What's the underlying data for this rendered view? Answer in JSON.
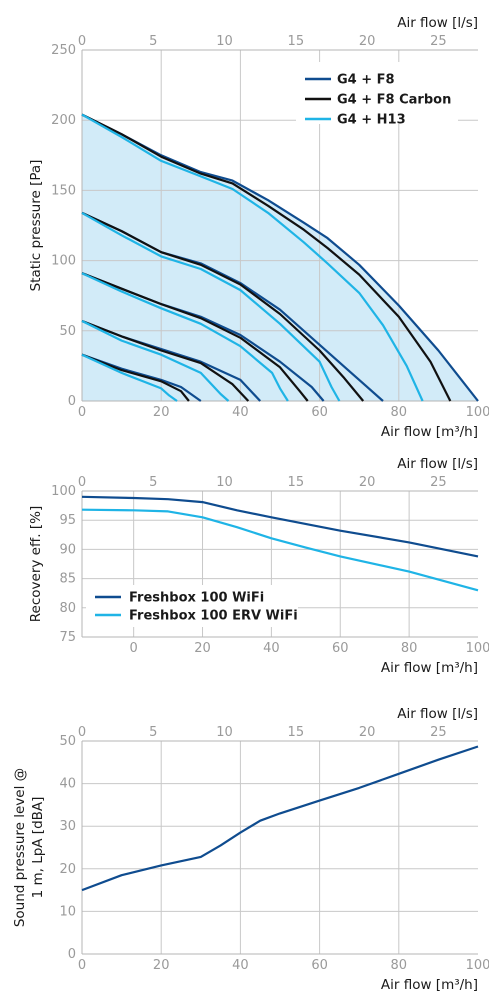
{
  "colors": {
    "dark_blue": "#0f4c8f",
    "black": "#111111",
    "light_blue": "#1fb4e6",
    "fill": "#d2ebf8",
    "grid": "#c8c8c8",
    "tick": "#9a9a9a"
  },
  "chart_data": [
    {
      "id": "static-pressure",
      "type": "line",
      "xlabel": "Air flow [m³/h]",
      "x2label": "Air flow [l/s]",
      "ylabel": "Static pressure [Pa]",
      "xlim": [
        0,
        100
      ],
      "x2lim": [
        0,
        27.78
      ],
      "ylim": [
        0,
        250
      ],
      "xticks": [
        "0",
        "20",
        "40",
        "60",
        "80",
        "100"
      ],
      "x2ticks": [
        "0",
        "5",
        "10",
        "15",
        "20",
        "25"
      ],
      "yticks": [
        "0",
        "50",
        "100",
        "150",
        "200",
        "250"
      ],
      "legend_position": "top-right",
      "shaded_region": true,
      "series": [
        {
          "name": "G4 + F8",
          "color": "dark_blue",
          "curves": [
            [
              [
                0,
                204
              ],
              [
                10,
                190
              ],
              [
                20,
                175
              ],
              [
                30,
                163
              ],
              [
                38,
                157
              ],
              [
                47,
                143
              ],
              [
                56,
                127
              ],
              [
                62,
                116
              ],
              [
                70,
                97
              ],
              [
                80,
                68
              ],
              [
                90,
                36
              ],
              [
                100,
                0
              ]
            ],
            [
              [
                0,
                134
              ],
              [
                10,
                121
              ],
              [
                20,
                106
              ],
              [
                30,
                98
              ],
              [
                40,
                84
              ],
              [
                50,
                65
              ],
              [
                60,
                40
              ],
              [
                68,
                20
              ],
              [
                76,
                0
              ]
            ],
            [
              [
                0,
                91
              ],
              [
                10,
                80
              ],
              [
                20,
                69
              ],
              [
                30,
                60
              ],
              [
                40,
                47
              ],
              [
                50,
                28
              ],
              [
                58,
                10
              ],
              [
                61,
                0
              ]
            ],
            [
              [
                0,
                57
              ],
              [
                10,
                46
              ],
              [
                20,
                37
              ],
              [
                30,
                28
              ],
              [
                40,
                15
              ],
              [
                45,
                0
              ]
            ],
            [
              [
                0,
                33
              ],
              [
                10,
                23
              ],
              [
                20,
                15
              ],
              [
                25,
                10
              ],
              [
                30,
                0
              ]
            ]
          ]
        },
        {
          "name": "G4 + F8 Carbon",
          "color": "black",
          "curves": [
            [
              [
                0,
                204
              ],
              [
                10,
                190
              ],
              [
                20,
                174
              ],
              [
                30,
                162
              ],
              [
                38,
                155
              ],
              [
                47,
                139
              ],
              [
                56,
                122
              ],
              [
                62,
                109
              ],
              [
                70,
                90
              ],
              [
                80,
                60
              ],
              [
                88,
                28
              ],
              [
                93,
                0
              ]
            ],
            [
              [
                0,
                134
              ],
              [
                10,
                121
              ],
              [
                20,
                106
              ],
              [
                30,
                97
              ],
              [
                40,
                83
              ],
              [
                50,
                62
              ],
              [
                60,
                36
              ],
              [
                66,
                17
              ],
              [
                71,
                0
              ]
            ],
            [
              [
                0,
                91
              ],
              [
                10,
                80
              ],
              [
                20,
                69
              ],
              [
                30,
                59
              ],
              [
                40,
                45
              ],
              [
                50,
                24
              ],
              [
                55,
                7
              ],
              [
                57,
                0
              ]
            ],
            [
              [
                0,
                57
              ],
              [
                10,
                46
              ],
              [
                20,
                36
              ],
              [
                30,
                27
              ],
              [
                38,
                12
              ],
              [
                42,
                0
              ]
            ],
            [
              [
                0,
                33
              ],
              [
                10,
                22
              ],
              [
                20,
                14
              ],
              [
                25,
                7
              ],
              [
                27,
                0
              ]
            ]
          ]
        },
        {
          "name": "G4 + H13",
          "color": "light_blue",
          "curves": [
            [
              [
                0,
                204
              ],
              [
                10,
                188
              ],
              [
                20,
                171
              ],
              [
                30,
                160
              ],
              [
                38,
                151
              ],
              [
                47,
                134
              ],
              [
                56,
                113
              ],
              [
                62,
                98
              ],
              [
                70,
                77
              ],
              [
                76,
                54
              ],
              [
                82,
                25
              ],
              [
                86,
                0
              ]
            ],
            [
              [
                0,
                134
              ],
              [
                10,
                118
              ],
              [
                20,
                103
              ],
              [
                30,
                94
              ],
              [
                40,
                79
              ],
              [
                50,
                55
              ],
              [
                60,
                28
              ],
              [
                63,
                10
              ],
              [
                65,
                0
              ]
            ],
            [
              [
                0,
                91
              ],
              [
                10,
                78
              ],
              [
                20,
                66
              ],
              [
                30,
                55
              ],
              [
                40,
                39
              ],
              [
                48,
                20
              ],
              [
                50,
                9
              ],
              [
                52,
                0
              ]
            ],
            [
              [
                0,
                57
              ],
              [
                10,
                43
              ],
              [
                20,
                33
              ],
              [
                30,
                20
              ],
              [
                35,
                5
              ],
              [
                37,
                0
              ]
            ],
            [
              [
                0,
                33
              ],
              [
                10,
                20
              ],
              [
                20,
                9
              ],
              [
                22,
                4
              ],
              [
                24,
                0
              ]
            ]
          ]
        }
      ]
    },
    {
      "id": "recovery",
      "type": "line",
      "xlabel": "Air flow [m³/h]",
      "x2label": "Air flow [l/s]",
      "ylabel": "Recovery eff. [%]",
      "xlim": [
        -15,
        100
      ],
      "x2lim": [
        0,
        27.78
      ],
      "ylim": [
        75,
        100
      ],
      "xticks": [
        "0",
        "20",
        "40",
        "60",
        "80",
        "100"
      ],
      "x2ticks": [
        "0",
        "5",
        "10",
        "15",
        "20",
        "25"
      ],
      "yticks": [
        "75",
        "80",
        "85",
        "90",
        "95",
        "100"
      ],
      "legend_position": "bottom-left",
      "series": [
        {
          "name": "Freshbox 100 WiFi",
          "color": "dark_blue",
          "points": [
            [
              -15,
              99
            ],
            [
              0,
              98.8
            ],
            [
              10,
              98.6
            ],
            [
              20,
              98.1
            ],
            [
              30,
              96.7
            ],
            [
              40,
              95.5
            ],
            [
              60,
              93.2
            ],
            [
              80,
              91.2
            ],
            [
              100,
              88.8
            ]
          ]
        },
        {
          "name": "Freshbox 100 ERV WiFi",
          "color": "light_blue",
          "points": [
            [
              -15,
              96.8
            ],
            [
              0,
              96.7
            ],
            [
              10,
              96.5
            ],
            [
              20,
              95.5
            ],
            [
              30,
              93.8
            ],
            [
              40,
              91.9
            ],
            [
              50,
              90.3
            ],
            [
              60,
              88.8
            ],
            [
              80,
              86.2
            ],
            [
              100,
              83
            ]
          ]
        }
      ]
    },
    {
      "id": "sound",
      "type": "line",
      "xlabel": "Air flow [m³/h]",
      "x2label": "Air flow [l/s]",
      "ylabel_lines": [
        "Sound pressure level @",
        "1 m, LpA [dBA]"
      ],
      "xlim": [
        0,
        100
      ],
      "x2lim": [
        0,
        27.78
      ],
      "ylim": [
        0,
        50
      ],
      "xticks": [
        "0",
        "20",
        "40",
        "60",
        "80",
        "100"
      ],
      "x2ticks": [
        "0",
        "5",
        "10",
        "15",
        "20",
        "25"
      ],
      "yticks": [
        "0",
        "10",
        "20",
        "30",
        "40",
        "50"
      ],
      "series": [
        {
          "color": "dark_blue",
          "points": [
            [
              0,
              15
            ],
            [
              10,
              18.5
            ],
            [
              20,
              20.8
            ],
            [
              30,
              22.8
            ],
            [
              35,
              25.5
            ],
            [
              40,
              28.5
            ],
            [
              45,
              31.3
            ],
            [
              50,
              33
            ],
            [
              60,
              36
            ],
            [
              70,
              39
            ],
            [
              80,
              42.3
            ],
            [
              90,
              45.6
            ],
            [
              100,
              48.7
            ]
          ]
        }
      ]
    }
  ]
}
